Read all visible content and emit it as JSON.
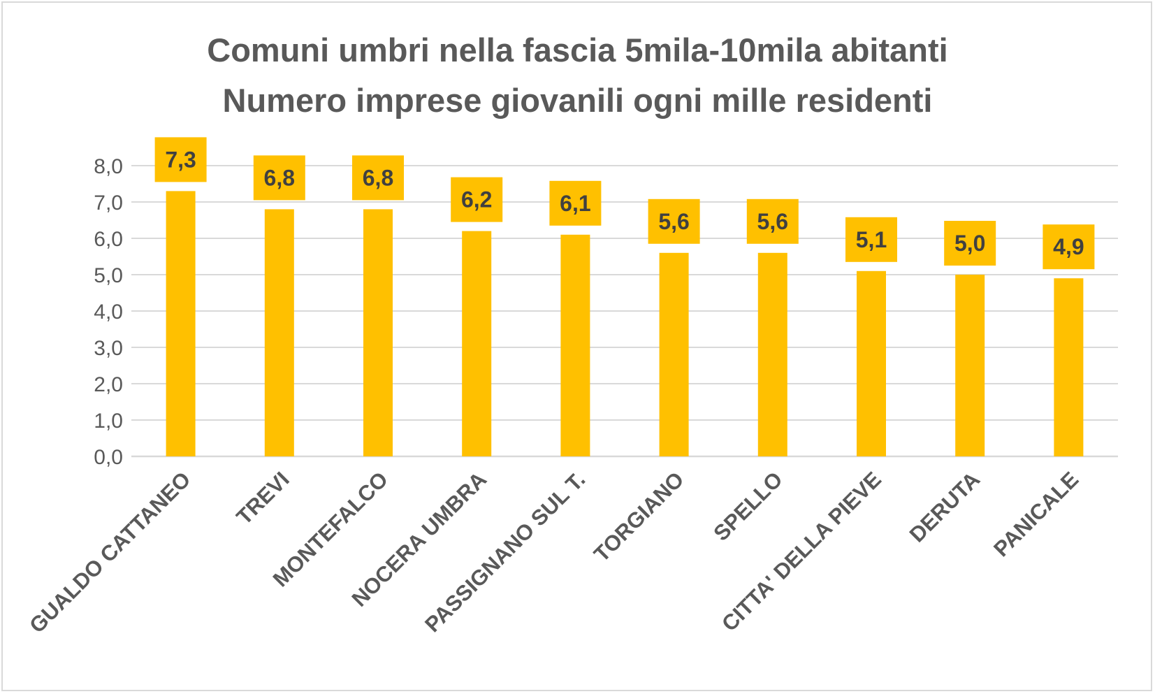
{
  "chart_data": {
    "type": "bar",
    "title": "Comuni umbri nella fascia 5mila-10mila abitanti",
    "subtitle": "Numero imprese giovanili ogni mille residenti",
    "xlabel": "",
    "ylabel": "",
    "categories": [
      "GUALDO CATTANEO",
      "TREVI",
      "MONTEFALCO",
      "NOCERA UMBRA",
      "PASSIGNANO SUL T.",
      "TORGIANO",
      "SPELLO",
      "CITTA' DELLA PIEVE",
      "DERUTA",
      "PANICALE"
    ],
    "values": [
      7.3,
      6.8,
      6.8,
      6.2,
      6.1,
      5.6,
      5.6,
      5.1,
      5.0,
      4.9
    ],
    "value_labels": [
      "7,3",
      "6,8",
      "6,8",
      "6,2",
      "6,1",
      "5,6",
      "5,6",
      "5,1",
      "5,0",
      "4,9"
    ],
    "ylim": [
      0,
      8
    ],
    "yticks": [
      "0,0",
      "1,0",
      "2,0",
      "3,0",
      "4,0",
      "5,0",
      "6,0",
      "7,0",
      "8,0"
    ],
    "grid": true,
    "legend": "none",
    "colors": {
      "bar": "#ffc000",
      "label_box": "#ffc000",
      "grid": "#d9d9d9",
      "text": "#595959"
    }
  }
}
